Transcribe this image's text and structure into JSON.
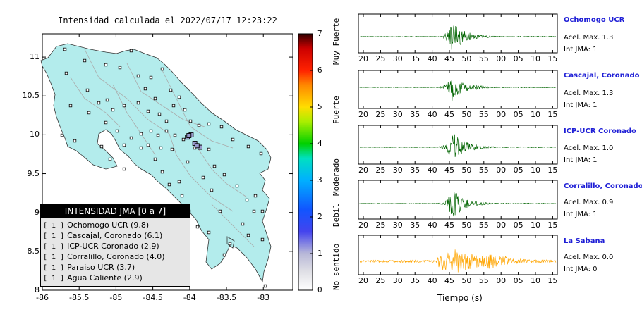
{
  "map": {
    "title": "Intensidad calculada el 2022/07/17_12:23:22",
    "x_ticks": [
      "-86",
      "-85.5",
      "-85",
      "-84.5",
      "-84",
      "-83.5",
      "-83"
    ],
    "y_ticks": [
      "11",
      "10.5",
      "10",
      "9.5",
      "9",
      "8.5",
      "8"
    ],
    "colorbar": {
      "ticks": [
        "7",
        "6",
        "5",
        "4",
        "3",
        "2",
        "1",
        "0"
      ],
      "labels": [
        "Muy Fuerte",
        "Fuerte",
        "Moderado",
        "Debil",
        "No sentido"
      ]
    },
    "legend": {
      "title": "INTENSIDAD JMA [0 a 7]",
      "items": [
        {
          "level": "[ 1 ]",
          "name": "Ochomogo UCR (9.8)"
        },
        {
          "level": "[ 1 ]",
          "name": "Cascajal, Coronado (6.1)"
        },
        {
          "level": "[ 1 ]",
          "name": "ICP-UCR Coronado (2.9)"
        },
        {
          "level": "[ 1 ]",
          "name": "Corralillo, Coronado (4.0)"
        },
        {
          "level": "[ 1 ]",
          "name": "Paraiso UCR (3.7)"
        },
        {
          "level": "[ 1 ]",
          "name": "Agua Caliente (2.9)"
        }
      ]
    },
    "colors": {
      "land": "#b3ecec",
      "border": "#333333",
      "road": "#999999"
    }
  },
  "waveforms": {
    "x_ticks": [
      "20",
      "25",
      "30",
      "35",
      "40",
      "45",
      "50",
      "55",
      "00",
      "05",
      "10",
      "15"
    ],
    "xlabel": "Tiempo (s)",
    "stations": [
      {
        "name": "Ochomogo UCR",
        "acc": "Acel. Max. 1.3",
        "int": "Int JMA: 1",
        "color": "#006400"
      },
      {
        "name": "Cascajal, Coronado",
        "acc": "Acel. Max. 1.3",
        "int": "Int JMA: 1",
        "color": "#006400"
      },
      {
        "name": "ICP-UCR Coronado",
        "acc": "Acel. Max. 1.0",
        "int": "Int JMA: 1",
        "color": "#006400"
      },
      {
        "name": "Corralillo, Coronado",
        "acc": "Acel. Max. 0.9",
        "int": "Int JMA: 1",
        "color": "#006400"
      },
      {
        "name": "La Sabana",
        "acc": "Acel. Max. 0.0",
        "int": "Int JMA: 0",
        "color": "#ffa500"
      }
    ]
  },
  "chart_data": [
    {
      "type": "heatmap",
      "title": "Intensidad calculada el 2022/07/17_12:23:22",
      "xlim": [
        -86,
        -82.6
      ],
      "ylim": [
        8,
        11.3
      ],
      "colorbar_range": [
        0,
        7
      ],
      "series": [
        {
          "name": "Ochomogo UCR",
          "x": -83.93,
          "y": 9.89,
          "jma": 1,
          "value": 9.8
        },
        {
          "name": "Cascajal, Coronado",
          "x": -83.98,
          "y": 10.0,
          "jma": 1,
          "value": 6.1
        },
        {
          "name": "ICP-UCR Coronado",
          "x": -84.03,
          "y": 9.97,
          "jma": 1,
          "value": 2.9
        },
        {
          "name": "Corralillo, Coronado",
          "x": -84.01,
          "y": 9.99,
          "jma": 1,
          "value": 4.0
        },
        {
          "name": "Paraiso UCR",
          "x": -83.86,
          "y": 9.84,
          "jma": 1,
          "value": 3.7
        },
        {
          "name": "Agua Caliente",
          "x": -83.9,
          "y": 9.86,
          "jma": 1,
          "value": 2.9
        }
      ]
    },
    {
      "type": "line",
      "xlabel": "Tiempo (s)",
      "x_tick_labels": [
        "20",
        "25",
        "30",
        "35",
        "40",
        "45",
        "50",
        "55",
        "00",
        "05",
        "10",
        "15"
      ],
      "series": [
        {
          "name": "Ochomogo UCR",
          "peak_acc": 1.3,
          "jma": 1
        },
        {
          "name": "Cascajal, Coronado",
          "peak_acc": 1.3,
          "jma": 1
        },
        {
          "name": "ICP-UCR Coronado",
          "peak_acc": 1.0,
          "jma": 1
        },
        {
          "name": "Corralillo, Coronado",
          "peak_acc": 0.9,
          "jma": 1
        },
        {
          "name": "La Sabana",
          "peak_acc": 0.0,
          "jma": 0
        }
      ]
    }
  ]
}
